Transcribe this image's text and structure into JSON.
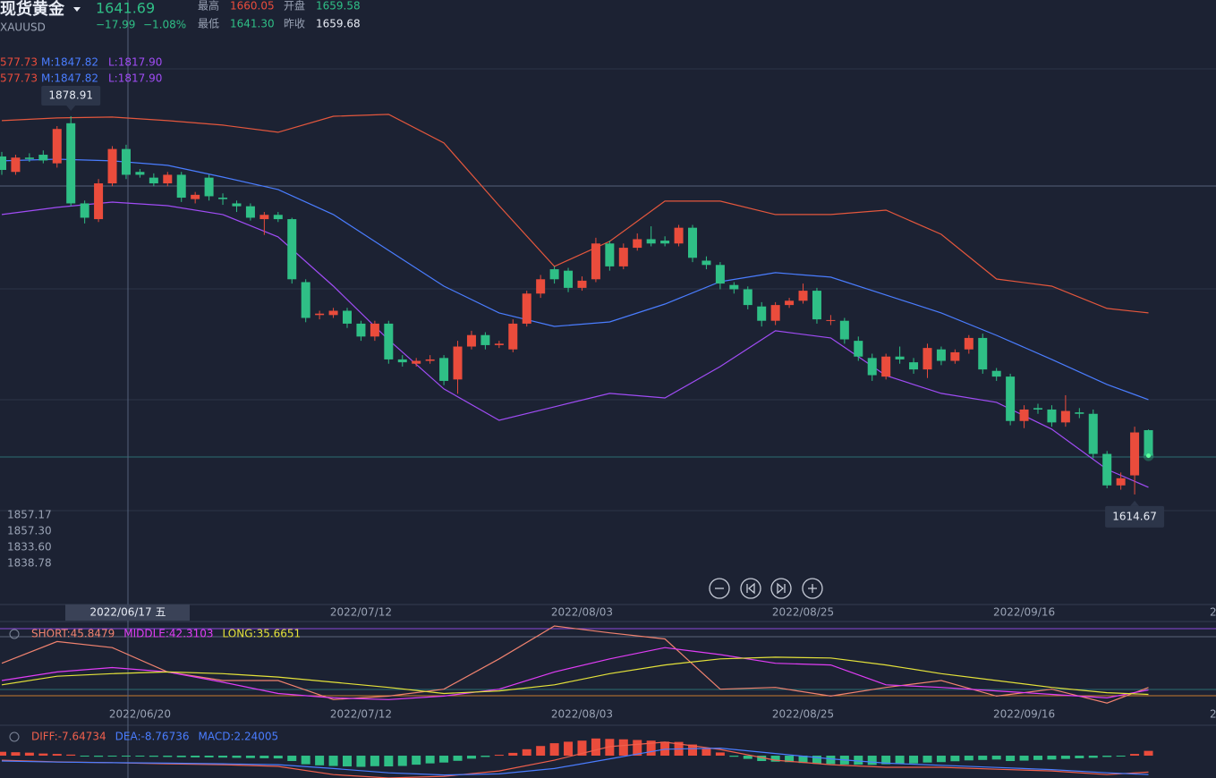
{
  "header": {
    "name": "现货黄金",
    "symbol": "XAUUSD",
    "price": "1641.69",
    "change": "−17.99",
    "change_pct": "−1.08%",
    "high_label": "最高",
    "high": "1660.05",
    "open_label": "开盘",
    "open": "1659.58",
    "low_label": "最低",
    "low": "1641.30",
    "prev_label": "昨收",
    "prev": "1659.68"
  },
  "boll_legend": [
    {
      "upper": "577.73",
      "middle": "M:1847.82",
      "lower": "L:1817.90"
    },
    {
      "upper": "577.73",
      "middle": "M:1847.82",
      "lower": "L:1817.90"
    }
  ],
  "info_panel": [
    "1857.17",
    "1857.30",
    "1833.60",
    "1838.78"
  ],
  "crosshair_label": "2022/06/17 五",
  "axis_cut_label": "2",
  "chart_data": [
    {
      "type": "candlestick",
      "up_color": "#ea4c3c",
      "down_color": "#2fbf86",
      "ylim": [
        1538.4,
        1960.1
      ],
      "categories": [
        null,
        null,
        null,
        null,
        null,
        null,
        null,
        null,
        null,
        null,
        "2022/06/20",
        null,
        null,
        null,
        null,
        null,
        null,
        null,
        null,
        null,
        null,
        null,
        null,
        null,
        null,
        null,
        "2022/07/12",
        null,
        null,
        null,
        null,
        null,
        null,
        null,
        null,
        null,
        null,
        null,
        null,
        null,
        null,
        null,
        "2022/08/03",
        null,
        null,
        null,
        null,
        null,
        null,
        null,
        null,
        null,
        null,
        null,
        null,
        null,
        null,
        null,
        "2022/08/25",
        null,
        null,
        null,
        null,
        null,
        null,
        null,
        null,
        null,
        null,
        null,
        null,
        null,
        null,
        null,
        "2022/09/16",
        null,
        null,
        null,
        null,
        null,
        null,
        null,
        null,
        null
      ],
      "open": [
        1850.8,
        1840,
        1850,
        1852,
        1846,
        1874,
        1818,
        1807,
        1832,
        1856,
        1840,
        1836,
        1832,
        1838,
        1821,
        1836,
        1822,
        1818,
        1816,
        1807,
        1810,
        1807,
        1763,
        1740,
        1740,
        1743,
        1734,
        1725,
        1734,
        1709,
        1706,
        1708,
        1710,
        1695,
        1718,
        1726,
        1719,
        1716,
        1734,
        1755,
        1772,
        1771,
        1759,
        1765,
        1790,
        1774,
        1787,
        1793,
        1792,
        1790,
        1801,
        1778,
        1775,
        1761,
        1758,
        1746,
        1736,
        1747,
        1750,
        1757,
        1736,
        1736,
        1722,
        1710,
        1697,
        1711,
        1707,
        1702,
        1716,
        1708,
        1716,
        1724,
        1701,
        1697,
        1666,
        1675,
        1674,
        1665,
        1672,
        1671,
        1643,
        1621,
        1628,
        1659.58
      ],
      "high": [
        1854,
        1852,
        1853,
        1855,
        1872,
        1878.91,
        1820,
        1835,
        1858,
        1859,
        1842,
        1839,
        1840,
        1840,
        1826,
        1838,
        1825,
        1820,
        1818,
        1812,
        1812,
        1808,
        1765,
        1743,
        1745,
        1745,
        1736,
        1736,
        1736,
        1712,
        1710,
        1712,
        1712,
        1722,
        1729,
        1728,
        1722,
        1737,
        1757,
        1768,
        1774,
        1773,
        1767,
        1794,
        1792,
        1790,
        1797,
        1802,
        1795,
        1803,
        1803,
        1781,
        1777,
        1763,
        1760,
        1749,
        1749,
        1752,
        1762,
        1759,
        1740,
        1738,
        1725,
        1713,
        1713,
        1718,
        1710,
        1720,
        1718,
        1716,
        1726,
        1727,
        1703,
        1699,
        1677,
        1678,
        1677,
        1684,
        1675,
        1674,
        1645,
        1630,
        1662,
        1660.05
      ],
      "low": [
        1838,
        1838,
        1847,
        1846,
        1843,
        1816,
        1804,
        1805,
        1830,
        1835,
        1836,
        1830,
        1830,
        1819,
        1818,
        1820,
        1817,
        1812,
        1806,
        1796,
        1805,
        1762,
        1735,
        1737,
        1738,
        1731,
        1722,
        1722,
        1706,
        1704,
        1704,
        1706,
        1691,
        1685,
        1716,
        1716,
        1717,
        1714,
        1732,
        1752,
        1762,
        1756,
        1757,
        1763,
        1771,
        1772,
        1785,
        1788,
        1788,
        1788,
        1777,
        1772,
        1758,
        1755,
        1744,
        1732,
        1733,
        1745,
        1748,
        1734,
        1733,
        1720,
        1708,
        1694,
        1695,
        1706,
        1699,
        1696,
        1705,
        1706,
        1713,
        1699,
        1694,
        1663,
        1661,
        1671,
        1662,
        1662,
        1668,
        1640,
        1619,
        1618,
        1614.67,
        1641.3
      ],
      "close": [
        1841.4,
        1850,
        1849,
        1848,
        1870,
        1818,
        1808,
        1832,
        1856,
        1838,
        1838,
        1832,
        1838,
        1822,
        1824,
        1823,
        1821,
        1816,
        1808,
        1810,
        1807,
        1765,
        1738,
        1741,
        1743,
        1734,
        1725,
        1734,
        1709,
        1707,
        1708,
        1709,
        1694,
        1718,
        1726,
        1719,
        1720,
        1734,
        1755,
        1765,
        1765,
        1759,
        1764,
        1790,
        1774,
        1787,
        1793,
        1790,
        1790,
        1801,
        1780,
        1775,
        1762,
        1758,
        1747,
        1736,
        1747,
        1750,
        1757,
        1737,
        1736.5,
        1723,
        1711,
        1698,
        1711,
        1709,
        1702,
        1717,
        1708,
        1714,
        1724,
        1702,
        1697,
        1666,
        1674,
        1674,
        1665,
        1673,
        1671,
        1643,
        1621,
        1626,
        1658,
        1641.69
      ],
      "series": [
        {
          "color": "#e4573d",
          "x": [
            0,
            4,
            8,
            12,
            16,
            20,
            24,
            28,
            32,
            36,
            40,
            44,
            48,
            52,
            56,
            60,
            64,
            68,
            72,
            76,
            80,
            83
          ],
          "values": [
            1875.8,
            1877.7,
            1878.3,
            1875.8,
            1872.7,
            1867.7,
            1878.9,
            1880.2,
            1860.2,
            1816.4,
            1774.0,
            1791.5,
            1819.6,
            1819.6,
            1810.2,
            1810.2,
            1813.3,
            1796.4,
            1765.2,
            1760.2,
            1744.6,
            1741.5
          ]
        },
        {
          "color": "#4a7dff",
          "x": [
            0,
            4,
            8,
            12,
            16,
            20,
            24,
            28,
            32,
            36,
            40,
            44,
            48,
            52,
            56,
            60,
            64,
            68,
            72,
            76,
            80,
            83
          ],
          "values": [
            1847.7,
            1848.9,
            1847.7,
            1844.6,
            1836.4,
            1827.7,
            1810.2,
            1785.2,
            1760.2,
            1741.5,
            1732.1,
            1735.2,
            1747.7,
            1763.3,
            1769.6,
            1766.5,
            1754.0,
            1741.5,
            1725.8,
            1709.0,
            1691.5,
            1680.9
          ]
        },
        {
          "color": "#a04cf5",
          "x": [
            0,
            4,
            8,
            12,
            16,
            20,
            24,
            28,
            32,
            36,
            40,
            44,
            48,
            52,
            56,
            60,
            64,
            68,
            72,
            76,
            80,
            83
          ],
          "values": [
            1810.2,
            1815.2,
            1818.9,
            1816.4,
            1810.2,
            1794.6,
            1760.2,
            1722.7,
            1688.4,
            1666.5,
            1675.9,
            1685.3,
            1682.1,
            1704.0,
            1729.0,
            1724.0,
            1697.7,
            1685.3,
            1679.0,
            1660.3,
            1632.2,
            1619.7
          ]
        }
      ]
    },
    {
      "type": "line",
      "ylim": [
        18,
        140
      ],
      "series": [
        {
          "label": "SHORT:45.8479",
          "color": "#f0826f",
          "x": [
            0,
            4,
            8,
            12,
            16,
            20,
            24,
            28,
            32,
            36,
            40,
            44,
            48,
            52,
            56,
            60,
            64,
            68,
            72,
            76,
            80,
            83
          ],
          "values": [
            81.4,
            113.2,
            104.3,
            68.7,
            56.0,
            56.0,
            28.1,
            33.2,
            43.3,
            87.8,
            136.0,
            125.9,
            117.0,
            43.3,
            45.9,
            33.2,
            45.9,
            56.0,
            33.2,
            43.3,
            23.0,
            45.8479
          ]
        },
        {
          "label": "MIDDLE:42.3103",
          "color": "#e03df5",
          "x": [
            0,
            4,
            8,
            12,
            16,
            20,
            24,
            28,
            32,
            36,
            40,
            44,
            48,
            52,
            56,
            60,
            64,
            68,
            72,
            76,
            80,
            83
          ],
          "values": [
            56.0,
            68.7,
            75.1,
            68.7,
            53.5,
            37.0,
            30.6,
            28.1,
            33.2,
            43.3,
            68.7,
            87.8,
            104.3,
            94.1,
            81.4,
            78.9,
            49.7,
            45.9,
            40.8,
            35.7,
            30.6,
            42.3103
          ]
        },
        {
          "label": "LONG:35.6651",
          "color": "#e4e23a",
          "x": [
            0,
            4,
            8,
            12,
            16,
            20,
            24,
            28,
            32,
            36,
            40,
            44,
            48,
            52,
            56,
            60,
            64,
            68,
            72,
            76,
            80,
            83
          ],
          "values": [
            49.7,
            62.4,
            66.2,
            68.7,
            66.2,
            61.1,
            53.5,
            45.9,
            37.0,
            40.8,
            49.7,
            66.2,
            78.9,
            87.8,
            90.3,
            89.1,
            78.9,
            66.2,
            56.0,
            45.9,
            38.2,
            35.6651
          ]
        }
      ]
    },
    {
      "type": "macd",
      "ylim": [
        -10.4,
        12.5
      ],
      "up_color": "#ea4c3c",
      "down_color": "#2fbf86",
      "values": [
        1.8,
        1.6,
        1.4,
        1.0,
        0.8,
        0.5,
        -0.4,
        -0.5,
        -0.3,
        -0.2,
        -0.4,
        -0.5,
        -0.6,
        -0.7,
        -0.8,
        -0.8,
        -0.9,
        -1.0,
        -1.1,
        -1.2,
        -1.3,
        -2.5,
        -4.0,
        -4.5,
        -4.8,
        -5.0,
        -5.2,
        -4.9,
        -5.0,
        -4.8,
        -4.2,
        -3.6,
        -3.2,
        -2.4,
        -1.4,
        -0.6,
        0.4,
        1.3,
        3.0,
        4.5,
        5.8,
        6.5,
        7.0,
        8.0,
        7.8,
        7.6,
        7.3,
        7.0,
        6.5,
        6.4,
        5.2,
        3.5,
        1.5,
        -0.5,
        -1.5,
        -2.5,
        -2.8,
        -3.0,
        -3.4,
        -3.8,
        -3.9,
        -4.1,
        -4.2,
        -4.3,
        -4.0,
        -3.8,
        -3.6,
        -3.2,
        -3.0,
        -2.6,
        -2.2,
        -2.0,
        -1.8,
        -2.5,
        -2.3,
        -2.0,
        -1.8,
        -1.5,
        -1.2,
        -1.0,
        -0.6,
        -0.2,
        0.8,
        2.24005
      ],
      "series": [
        {
          "label": "DIFF:-7.64734",
          "color": "#f0604d",
          "x": [
            0,
            4,
            8,
            12,
            16,
            20,
            24,
            28,
            32,
            36,
            40,
            44,
            48,
            52,
            56,
            60,
            64,
            68,
            72,
            76,
            80,
            83
          ],
          "values": [
            -2.1,
            -2.9,
            -3.3,
            -3.8,
            -4.2,
            -5.0,
            -8.8,
            -10.4,
            -9.6,
            -7.1,
            -2.1,
            4.2,
            6.3,
            2.9,
            -2.1,
            -4.2,
            -5.4,
            -5.4,
            -6.3,
            -7.1,
            -8.8,
            -7.64734
          ]
        },
        {
          "label": "DEA:-8.76736",
          "color": "#4a7dff",
          "x": [
            0,
            4,
            8,
            12,
            16,
            20,
            24,
            28,
            32,
            36,
            40,
            44,
            48,
            52,
            56,
            60,
            64,
            68,
            72,
            76,
            80,
            83
          ],
          "values": [
            -2.5,
            -3.0,
            -3.3,
            -3.5,
            -3.8,
            -4.2,
            -6.0,
            -8.0,
            -9.0,
            -8.5,
            -6.0,
            -1.5,
            3.0,
            3.5,
            1.0,
            -1.5,
            -3.5,
            -4.5,
            -5.5,
            -6.5,
            -8.0,
            -8.76736
          ]
        }
      ],
      "macd_label": "MACD:2.24005",
      "macd_label_color": "#4a7dff"
    }
  ]
}
